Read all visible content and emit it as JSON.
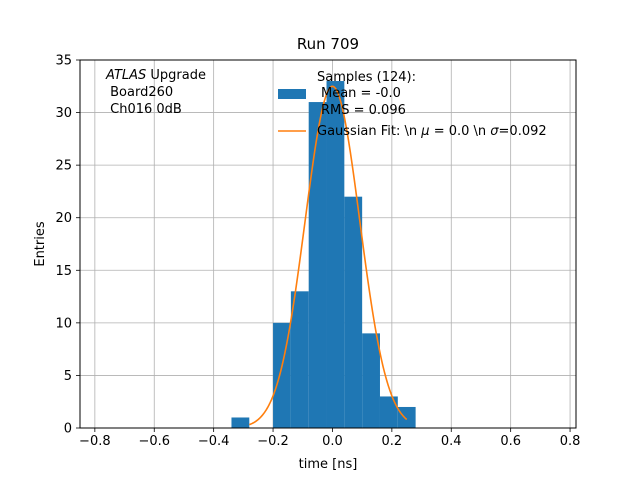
{
  "chart_data": {
    "type": "bar",
    "title": "Run 709",
    "xlabel": "time [ns]",
    "ylabel": "Entries",
    "xlim": [
      -0.85,
      0.82
    ],
    "ylim": [
      0,
      35
    ],
    "xticks": [
      -0.8,
      -0.6,
      -0.4,
      -0.2,
      0.0,
      0.2,
      0.4,
      0.6,
      0.8
    ],
    "xtick_labels": [
      "−0.8",
      "−0.6",
      "−0.4",
      "−0.2",
      "0.0",
      "0.2",
      "0.4",
      "0.6",
      "0.8"
    ],
    "yticks": [
      0,
      5,
      10,
      15,
      20,
      25,
      30,
      35
    ],
    "ytick_labels": [
      "0",
      "5",
      "10",
      "15",
      "20",
      "25",
      "30",
      "35"
    ],
    "grid": true,
    "annotation": {
      "italic": "ATLAS",
      "line1_rest": " Upgrade",
      "line2": " Board260",
      "line3": " Ch016 0dB"
    },
    "legend": {
      "location": "upper-right",
      "histogram": {
        "line1": "Samples (124):",
        "line2": "Mean = -0.0",
        "line3": "RMS = 0.096"
      },
      "fit": {
        "prefix": "Gaussian Fit: \\n ",
        "mu_symbol": "μ",
        "mid": " = 0.0 \\n ",
        "sigma_symbol": "σ",
        "suffix": "=0.092"
      }
    },
    "histogram": {
      "name": "Samples (124)",
      "color": "#1f77b4",
      "bins": [
        {
          "x0": -0.34,
          "x1": -0.28,
          "count": 1
        },
        {
          "x0": -0.2,
          "x1": -0.14,
          "count": 10
        },
        {
          "x0": -0.14,
          "x1": -0.08,
          "count": 13
        },
        {
          "x0": -0.08,
          "x1": -0.02,
          "count": 31
        },
        {
          "x0": -0.02,
          "x1": 0.04,
          "count": 33
        },
        {
          "x0": 0.04,
          "x1": 0.1,
          "count": 22
        },
        {
          "x0": 0.1,
          "x1": 0.16,
          "count": 9
        },
        {
          "x0": 0.16,
          "x1": 0.22,
          "count": 3
        },
        {
          "x0": 0.22,
          "x1": 0.28,
          "count": 2
        }
      ]
    },
    "fit": {
      "name": "Gaussian Fit",
      "color": "#ff7f0e",
      "mu": 0.0,
      "sigma": 0.092,
      "amplitude": 32.5,
      "x_range": [
        -0.28,
        0.25
      ]
    }
  }
}
